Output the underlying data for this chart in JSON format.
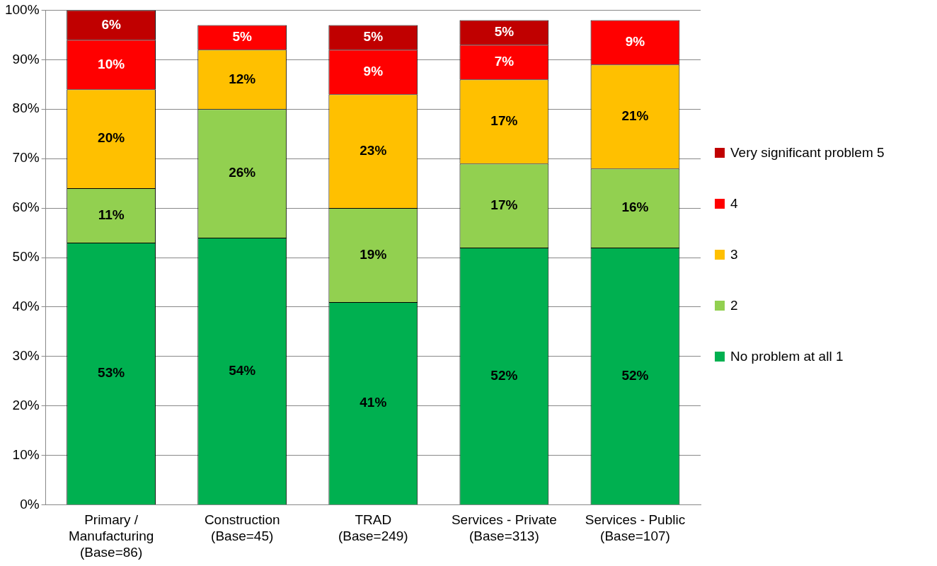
{
  "chart_data": {
    "type": "bar",
    "stacked": true,
    "categories": [
      "Primary /\nManufacturing\n(Base=86)",
      "Construction\n(Base=45)",
      "TRAD\n(Base=249)",
      "Services - Private\n(Base=313)",
      "Services - Public\n(Base=107)"
    ],
    "series": [
      {
        "name": "No problem at all 1",
        "color": "#00b050",
        "values": [
          53,
          54,
          41,
          52,
          52
        ],
        "value_labels": [
          "53%",
          "54%",
          "41%",
          "52%",
          "52%"
        ]
      },
      {
        "name": "2",
        "color": "#92d050",
        "values": [
          11,
          26,
          19,
          17,
          16
        ],
        "value_labels": [
          "11%",
          "26%",
          "19%",
          "17%",
          "16%"
        ]
      },
      {
        "name": "3",
        "color": "#ffc000",
        "values": [
          20,
          12,
          23,
          17,
          21
        ],
        "value_labels": [
          "20%",
          "12%",
          "23%",
          "17%",
          "21%"
        ]
      },
      {
        "name": "4",
        "color": "#ff0000",
        "values": [
          10,
          5,
          9,
          7,
          9
        ],
        "value_labels": [
          "10%",
          "5%",
          "9%",
          "7%",
          "9%"
        ]
      },
      {
        "name": "Very significant problem 5",
        "color": "#c00000",
        "values": [
          6,
          null,
          5,
          5,
          null
        ],
        "value_labels": [
          "6%",
          null,
          "5%",
          "5%",
          null
        ]
      }
    ],
    "ylim": [
      0,
      100
    ],
    "yticks": [
      {
        "value": 0,
        "label": "0%"
      },
      {
        "value": 10,
        "label": "10%"
      },
      {
        "value": 20,
        "label": "20%"
      },
      {
        "value": 30,
        "label": "30%"
      },
      {
        "value": 40,
        "label": "40%"
      },
      {
        "value": 50,
        "label": "50%"
      },
      {
        "value": 60,
        "label": "60%"
      },
      {
        "value": 70,
        "label": "70%"
      },
      {
        "value": 80,
        "label": "80%"
      },
      {
        "value": 90,
        "label": "90%"
      },
      {
        "value": 100,
        "label": "100%"
      }
    ],
    "grid": "y",
    "legend": "right"
  }
}
